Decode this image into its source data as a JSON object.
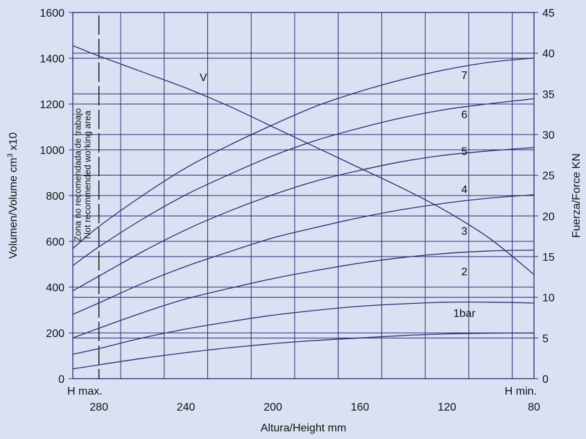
{
  "chart_data": {
    "type": "line",
    "xlabel": "Altura/Height mm",
    "ylabel_left": "Volumen/Volume cm",
    "ylabel_left_sup": "3",
    "ylabel_left_suffix": " x10",
    "ylabel_right": "Fuerza/Force KN",
    "x_range": [
      292,
      80
    ],
    "x_ticks": [
      280,
      240,
      200,
      160,
      120,
      80
    ],
    "x_annotations": {
      "left": "H max.",
      "right": "H min."
    },
    "y_left_range": [
      0,
      1600
    ],
    "y_left_ticks": [
      0,
      200,
      400,
      600,
      800,
      1000,
      1200,
      1400,
      1600
    ],
    "y_right_range": [
      0,
      45
    ],
    "y_right_ticks": [
      0,
      5,
      10,
      15,
      20,
      25,
      30,
      35,
      40,
      45
    ],
    "grid": true,
    "zone_text": [
      "Zona no recomendada de trabajo",
      "Not recommended working area"
    ],
    "zone_x": 280,
    "volume_series": {
      "name": "V",
      "axis": "left",
      "x": [
        292,
        280,
        260,
        240,
        220,
        200,
        180,
        160,
        140,
        120,
        100,
        80
      ],
      "y": [
        1455,
        1410,
        1340,
        1270,
        1190,
        1100,
        1010,
        920,
        830,
        730,
        610,
        455
      ]
    },
    "force_series": [
      {
        "name": "1bar",
        "axis": "right",
        "x": [
          292,
          280,
          260,
          240,
          220,
          200,
          180,
          160,
          140,
          120,
          100,
          80
        ],
        "y": [
          1.2,
          1.7,
          2.5,
          3.2,
          3.8,
          4.3,
          4.7,
          5.0,
          5.3,
          5.5,
          5.6,
          5.6
        ]
      },
      {
        "name": "2",
        "axis": "right",
        "x": [
          292,
          280,
          260,
          240,
          220,
          200,
          180,
          160,
          140,
          120,
          100,
          80
        ],
        "y": [
          3.0,
          3.7,
          5.0,
          6.1,
          7.0,
          7.8,
          8.4,
          8.9,
          9.2,
          9.4,
          9.4,
          9.3
        ]
      },
      {
        "name": "3",
        "axis": "right",
        "x": [
          292,
          280,
          260,
          240,
          220,
          200,
          180,
          160,
          140,
          120,
          100,
          80
        ],
        "y": [
          5.0,
          6.2,
          8.1,
          9.8,
          11.1,
          12.3,
          13.3,
          14.2,
          14.9,
          15.4,
          15.7,
          15.8
        ]
      },
      {
        "name": "4",
        "axis": "right",
        "x": [
          292,
          280,
          260,
          240,
          220,
          200,
          180,
          160,
          140,
          120,
          100,
          80
        ],
        "y": [
          7.9,
          9.3,
          11.7,
          13.8,
          15.6,
          17.3,
          18.6,
          19.8,
          20.8,
          21.6,
          22.2,
          22.6
        ]
      },
      {
        "name": "5",
        "axis": "right",
        "x": [
          292,
          280,
          260,
          240,
          220,
          200,
          180,
          160,
          140,
          120,
          100,
          80
        ],
        "y": [
          10.8,
          12.6,
          15.6,
          18.3,
          20.6,
          22.6,
          24.3,
          25.6,
          26.7,
          27.5,
          28.0,
          28.4
        ]
      },
      {
        "name": "6",
        "axis": "right",
        "x": [
          292,
          280,
          260,
          240,
          220,
          200,
          180,
          160,
          140,
          120,
          100,
          80
        ],
        "y": [
          13.9,
          16.2,
          19.6,
          22.6,
          25.1,
          27.4,
          29.3,
          30.8,
          32.1,
          33.1,
          33.8,
          34.4
        ]
      },
      {
        "name": "7",
        "axis": "right",
        "x": [
          292,
          280,
          260,
          240,
          220,
          200,
          180,
          160,
          140,
          120,
          100,
          80
        ],
        "y": [
          16.0,
          18.7,
          22.5,
          25.9,
          28.7,
          31.2,
          33.5,
          35.3,
          36.8,
          38.0,
          38.9,
          39.4
        ]
      }
    ]
  }
}
